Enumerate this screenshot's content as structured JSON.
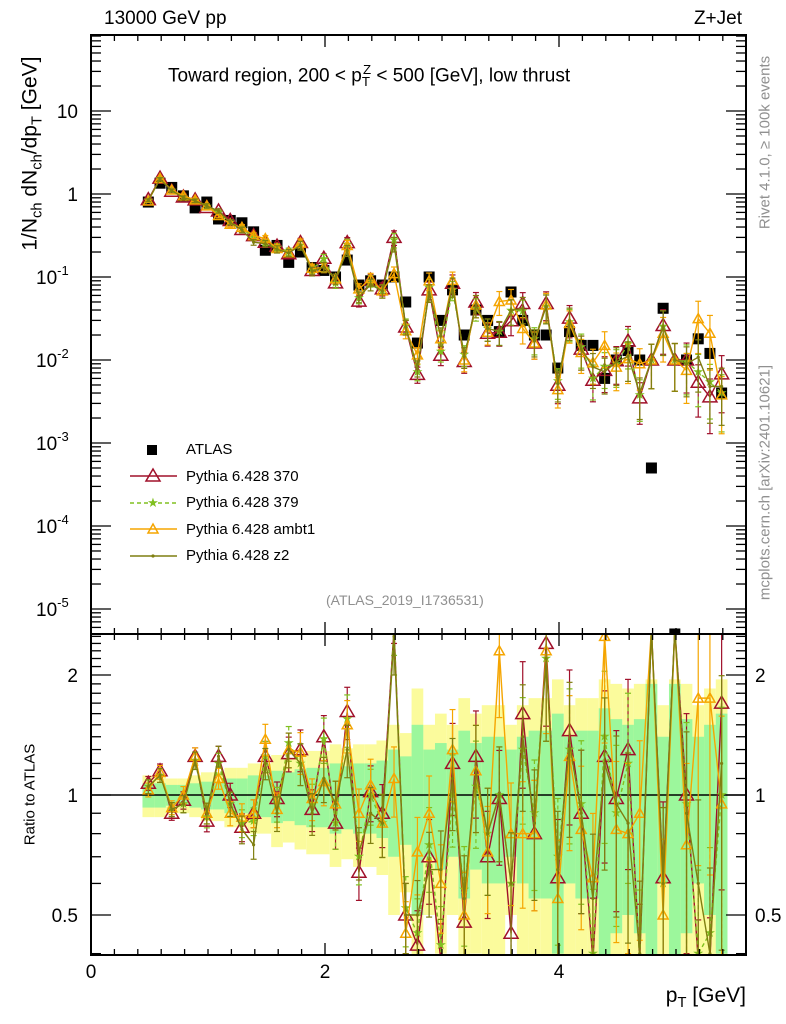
{
  "header": {
    "left": "13000 GeV pp",
    "right": "Z+Jet"
  },
  "side_texts": {
    "rivet": "Rivet 4.1.0, ≥ 100k events",
    "mcplots": "mcplots.cern.ch [arXiv:2401.10621]"
  },
  "analysis_id": "(ATLAS_2019_I1736531)",
  "title": {
    "pre": "Toward region, 200 < p",
    "sub": "T",
    "sup": "Z",
    "post": " < 500 [GeV], low thrust"
  },
  "ylabel": {
    "a": "1/N",
    "a_sub": "ch",
    "b": " dN",
    "b_sub": "ch",
    "c": "/dp",
    "c_sub": "T",
    "d": " [GeV]"
  },
  "ratio_ylabel": "Ratio to ATLAS",
  "xlabel": {
    "a": "p",
    "a_sub": "T",
    "b": " [GeV]"
  },
  "colors": {
    "ATLAS": "#000000",
    "p370": "#a0102a",
    "p379": "#80c020",
    "ambt1": "#f5a500",
    "z2": "#7f7f10",
    "band_inner": "#9cf79c",
    "band_outer": "#fbfb9c"
  },
  "chart_data": {
    "type": "scatter",
    "xlabel": "pT [GeV]",
    "ylabel": "1/Nch dNch/dpT [GeV]",
    "xlim": [
      0,
      5.6
    ],
    "ylim": [
      5e-06,
      85
    ],
    "yscale": "log",
    "ratio_ylim": [
      0.4,
      2.5
    ],
    "x_start": 0.49,
    "x_step": 0.1,
    "xticks": [
      "0",
      "2",
      "4"
    ],
    "xtick_values": [
      0,
      2,
      4
    ],
    "yticks": [
      {
        "base": "10",
        "exp": "-5",
        "v": 1e-05
      },
      {
        "base": "10",
        "exp": "-4",
        "v": 0.0001
      },
      {
        "base": "10",
        "exp": "-3",
        "v": 0.001
      },
      {
        "base": "10",
        "exp": "-2",
        "v": 0.01
      },
      {
        "base": "10",
        "exp": "-1",
        "v": 0.1
      },
      {
        "base": "1",
        "exp": "",
        "v": 1
      },
      {
        "base": "10",
        "exp": "",
        "v": 10
      }
    ],
    "ratio_yticks": [
      {
        "label": "0.5",
        "v": 0.5
      },
      {
        "label": "1",
        "v": 1
      },
      {
        "label": "2",
        "v": 2
      }
    ],
    "legend": [
      "ATLAS",
      "Pythia 6.428 370",
      "Pythia 6.428 379",
      "Pythia 6.428 ambt1",
      "Pythia 6.428 z2"
    ],
    "legend_position": "middle-left",
    "atlas": [
      0.8,
      1.35,
      1.2,
      0.95,
      0.68,
      0.8,
      0.5,
      0.48,
      0.45,
      0.35,
      0.21,
      0.24,
      0.15,
      0.2,
      0.13,
      0.12,
      0.1,
      0.16,
      0.08,
      0.09,
      0.08,
      0.1,
      0.05,
      0.016,
      0.1,
      0.03,
      0.07,
      0.02,
      0.04,
      0.03,
      0.022,
      0.066,
      0.03,
      0.02,
      0.02,
      0.008,
      0.022,
      0.015,
      0.015,
      0.006,
      0.01,
      0.013,
      0.01,
      0.0005,
      0.042,
      5e-06,
      0.01,
      0.018,
      0.012,
      0.004
    ],
    "band_inner_rel": [
      0.07,
      0.07,
      0.06,
      0.06,
      0.07,
      0.08,
      0.08,
      0.1,
      0.1,
      0.12,
      0.12,
      0.15,
      0.14,
      0.16,
      0.17,
      0.17,
      0.2,
      0.18,
      0.2,
      0.2,
      0.22,
      0.3,
      0.25,
      0.5,
      0.3,
      0.35,
      0.3,
      0.45,
      0.35,
      0.4,
      0.4,
      0.3,
      0.4,
      0.45,
      0.45,
      0.6,
      0.4,
      0.45,
      0.45,
      0.65,
      0.55,
      0.5,
      0.55,
      0.9,
      0.4,
      0.9,
      0.55,
      0.4,
      0.5,
      0.6
    ],
    "band_outer_rel": [
      0.12,
      0.12,
      0.1,
      0.1,
      0.12,
      0.14,
      0.14,
      0.17,
      0.17,
      0.2,
      0.2,
      0.26,
      0.24,
      0.27,
      0.29,
      0.29,
      0.34,
      0.31,
      0.34,
      0.34,
      0.37,
      0.5,
      0.43,
      0.85,
      0.5,
      0.6,
      0.5,
      0.75,
      0.6,
      0.68,
      0.68,
      0.5,
      0.68,
      0.75,
      0.75,
      0.95,
      0.68,
      0.75,
      0.75,
      0.95,
      0.9,
      0.85,
      0.9,
      0.95,
      0.68,
      0.95,
      0.9,
      0.68,
      0.85,
      0.95
    ],
    "mc_rel_err": [
      0.04,
      0.04,
      0.04,
      0.05,
      0.05,
      0.06,
      0.06,
      0.07,
      0.08,
      0.08,
      0.09,
      0.1,
      0.1,
      0.12,
      0.12,
      0.13,
      0.14,
      0.15,
      0.15,
      0.16,
      0.18,
      0.2,
      0.2,
      0.22,
      0.24,
      0.25,
      0.26,
      0.28,
      0.3,
      0.3,
      0.32,
      0.34,
      0.35,
      0.36,
      0.38,
      0.4,
      0.42,
      0.44,
      0.45,
      0.46,
      0.48,
      0.5,
      0.52,
      0.55,
      0.55,
      0.58,
      0.6,
      0.62,
      0.64,
      0.66
    ],
    "series": [
      {
        "name": "Pythia 6.428 370",
        "key": "p370",
        "marker": "triangle-large",
        "dash": "",
        "ratio": [
          1.07,
          1.15,
          0.9,
          0.97,
          1.25,
          0.86,
          1.25,
          1.0,
          0.83,
          0.9,
          1.25,
          0.98,
          1.27,
          1.3,
          0.92,
          1.4,
          0.85,
          1.62,
          0.64,
          1.02,
          0.9,
          3.0,
          0.5,
          0.42,
          0.7,
          0.38,
          1.2,
          0.48,
          1.25,
          0.7,
          0.98,
          0.45,
          1.6,
          0.8,
          2.4,
          0.62,
          1.45,
          0.9,
          0.38,
          1.25,
          0.98,
          1.3,
          0.35,
          20,
          0.62,
          2000,
          1.0,
          0.3,
          0.3,
          1.7
        ]
      },
      {
        "name": "Pythia 6.428 379",
        "key": "p379",
        "marker": "star",
        "dash": "4,3",
        "ratio": [
          1.05,
          1.12,
          0.92,
          0.95,
          1.22,
          0.88,
          1.2,
          0.95,
          0.85,
          0.86,
          1.25,
          0.95,
          1.35,
          1.2,
          0.95,
          1.38,
          0.85,
          1.55,
          0.7,
          1.0,
          0.85,
          2.8,
          0.52,
          0.45,
          0.75,
          0.42,
          1.0,
          0.58,
          1.05,
          0.8,
          1.0,
          0.6,
          1.3,
          0.9,
          2.2,
          0.7,
          1.3,
          0.95,
          0.4,
          1.4,
          0.9,
          1.2,
          0.38,
          20,
          0.6,
          2000,
          0.95,
          0.4,
          0.45,
          1.0
        ]
      },
      {
        "name": "Pythia 6.428 ambt1",
        "key": "ambt1",
        "marker": "triangle-small",
        "dash": "",
        "ratio": [
          1.03,
          1.14,
          0.93,
          1.0,
          1.25,
          0.9,
          1.1,
          0.9,
          0.88,
          0.9,
          1.38,
          0.92,
          1.3,
          1.28,
          0.98,
          1.08,
          0.95,
          1.5,
          0.9,
          1.06,
          0.85,
          1.1,
          0.45,
          0.72,
          0.9,
          0.6,
          1.3,
          0.5,
          1.15,
          0.72,
          2.3,
          0.8,
          0.8,
          0.8,
          2.3,
          0.55,
          1.25,
          0.82,
          0.62,
          2.5,
          0.82,
          0.8,
          0.9,
          20,
          0.5,
          2000,
          0.75,
          1.75,
          1.75,
          0.95
        ]
      },
      {
        "name": "Pythia 6.428 z2",
        "key": "z2",
        "marker": "dot",
        "dash": "",
        "ratio": [
          1.05,
          1.12,
          0.92,
          0.95,
          1.22,
          0.9,
          1.25,
          0.95,
          0.82,
          0.75,
          1.2,
          0.9,
          1.3,
          1.2,
          0.9,
          1.1,
          0.95,
          1.3,
          0.72,
          0.9,
          0.85,
          2.5,
          0.5,
          0.5,
          0.65,
          0.65,
          1.1,
          0.55,
          1.15,
          0.8,
          1.0,
          0.6,
          1.4,
          0.85,
          2.2,
          0.65,
          1.35,
          0.9,
          0.55,
          1.2,
          0.95,
          0.85,
          0.4,
          20,
          0.6,
          2000,
          0.9,
          0.6,
          0.4,
          1.2
        ]
      }
    ]
  }
}
